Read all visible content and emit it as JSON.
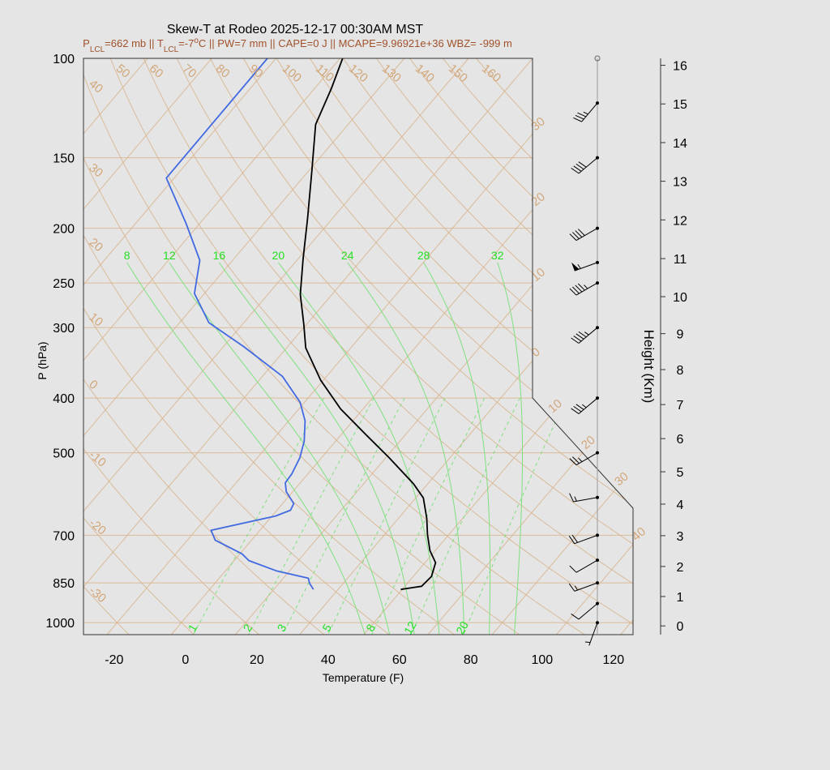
{
  "chart_data": {
    "type": "skewt",
    "title": "Skew-T at Rodeo 2025-12-17 00:30AM MST",
    "subtitle": [
      {
        "text": "P"
      },
      {
        "text": "LCL",
        "shift": "sub"
      },
      {
        "text": "=662 mb || T"
      },
      {
        "text": "LCL",
        "shift": "sub"
      },
      {
        "text": "=-7"
      },
      {
        "text": "o",
        "shift": "super"
      },
      {
        "text": "C || PW=7 mm || CAPE=0 J || MCAPE=9.96921e+36 WBZ= -999 m"
      }
    ],
    "x_label": "Temperature (F)",
    "y_label": "P (hPa)",
    "y2_label": "Height (Km)",
    "xlim": [
      -28.6,
      125.5
    ],
    "xticks": [
      -20,
      0,
      20,
      40,
      60,
      80,
      100,
      120
    ],
    "ylim": [
      100,
      1050
    ],
    "y_log": true,
    "yticks": [
      100,
      150,
      200,
      250,
      300,
      400,
      500,
      700,
      850,
      1000
    ],
    "y2ticks": [
      0,
      1,
      2,
      3,
      4,
      5,
      6,
      7,
      8,
      9,
      10,
      11,
      12,
      13,
      14,
      15,
      16
    ],
    "isotherms": [
      {
        "value": -30,
        "label": "30"
      },
      {
        "value": -20,
        "label": "20"
      },
      {
        "value": -10,
        "label": "10"
      },
      0,
      10,
      20,
      30,
      40
    ],
    "dry_adiabats": [
      -30,
      -20,
      -10,
      0,
      10,
      20,
      30,
      40,
      50,
      60,
      70,
      80,
      90,
      100,
      110,
      120,
      130,
      140,
      150,
      160
    ],
    "moist_adiabats": [
      8,
      12,
      16,
      20,
      24,
      28,
      32
    ],
    "mixing_ratios": [
      1,
      2,
      3,
      5,
      8,
      12,
      20
    ],
    "temperature": {
      "color": "#000000",
      "pressure": [
        873,
        862,
        828,
        783,
        745,
        698,
        653,
        601,
        567,
        510,
        462,
        418,
        372,
        326,
        296,
        262,
        227,
        192,
        158,
        131,
        113,
        100
      ],
      "values": [
        49.6,
        54.7,
        55.1,
        53.0,
        48.5,
        44.0,
        39.9,
        34.1,
        27.9,
        14.9,
        2.3,
        -10.3,
        -22.7,
        -34.6,
        -40.8,
        -48.9,
        -56.5,
        -65.0,
        -75.2,
        -85.1,
        -89.3,
        -93.3
      ]
    },
    "dewpoint": {
      "color": "#4169e1",
      "pressure": [
        873,
        852,
        834,
        809,
        776,
        755,
        714,
        686,
        647,
        632,
        615,
        586,
        565,
        545,
        510,
        477,
        439,
        407,
        366,
        324,
        294,
        261,
        228,
        196,
        163,
        100
      ],
      "values": [
        25.1,
        22.6,
        21.0,
        10.2,
        0.1,
        -3.4,
        -14.2,
        -17.7,
        -3.0,
        -0.2,
        -0.9,
        -5.8,
        -8.2,
        -8.5,
        -10.1,
        -12.8,
        -17.4,
        -23.2,
        -34.4,
        -52.4,
        -67.8,
        -78.8,
        -85.2,
        -97.9,
        -114.2,
        -114.4
      ]
    },
    "wind": {
      "pressure": [
        1000,
        925,
        850,
        775,
        700,
        600,
        500,
        400,
        300,
        250,
        230,
        200,
        150,
        120
      ],
      "speed": [
        5,
        10,
        15,
        10,
        20,
        15,
        25,
        35,
        45,
        45,
        55,
        40,
        40,
        35
      ],
      "direction": [
        200,
        230,
        250,
        240,
        250,
        260,
        240,
        230,
        230,
        240,
        250,
        240,
        230,
        220
      ]
    }
  }
}
